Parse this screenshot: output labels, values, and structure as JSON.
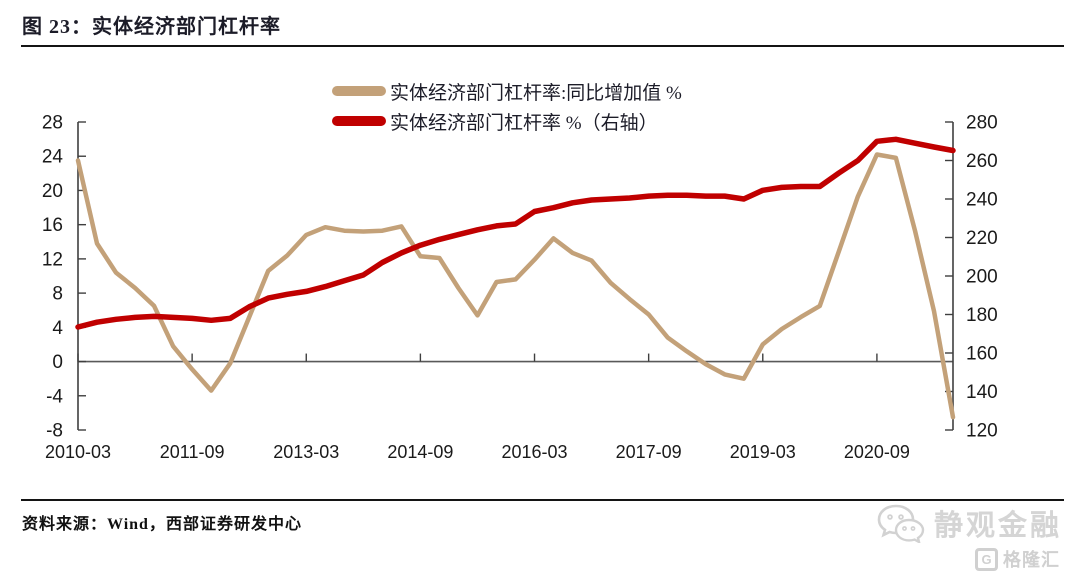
{
  "header": {
    "title": "图 23：实体经济部门杠杆率"
  },
  "legend": [
    {
      "label": "实体经济部门杠杆率:同比增加值 %",
      "color": "#c3a179"
    },
    {
      "label": "实体经济部门杠杆率 %（右轴）",
      "color": "#c00000"
    }
  ],
  "footer": {
    "source": "资料来源：Wind，西部证券研发中心"
  },
  "watermark": {
    "brand": "静观金融",
    "logo_letter": "G",
    "logo_text": "格隆汇"
  },
  "chart_data": {
    "type": "line",
    "x_start": "2010-03",
    "x_frequency": "quarterly",
    "x_tick_labels": [
      "2010-03",
      "2011-09",
      "2013-03",
      "2014-09",
      "2016-03",
      "2017-09",
      "2019-03",
      "2020-09"
    ],
    "x_tick_indices": [
      0,
      6,
      12,
      18,
      24,
      30,
      36,
      42
    ],
    "left_axis": {
      "ticks": [
        28,
        24,
        20,
        16,
        12,
        8,
        4,
        0,
        -4,
        -8
      ],
      "range": [
        -8,
        28
      ]
    },
    "right_axis": {
      "ticks": [
        280,
        260,
        240,
        220,
        200,
        180,
        160,
        140,
        120
      ],
      "range": [
        120,
        280
      ]
    },
    "grid": false,
    "legend_position": "top-center",
    "series": [
      {
        "name": "实体经济部门杠杆率:同比增加值 %",
        "axis": "left",
        "color": "#c3a179",
        "width": 4.5,
        "values": [
          23.5,
          13.8,
          10.4,
          8.6,
          6.5,
          1.8,
          -0.9,
          -3.4,
          -0.2,
          5.2,
          10.6,
          12.4,
          14.8,
          15.7,
          15.3,
          15.2,
          15.3,
          15.8,
          12.3,
          12.1,
          8.6,
          5.4,
          9.3,
          9.6,
          11.9,
          14.4,
          12.7,
          11.8,
          9.2,
          7.3,
          5.5,
          2.8,
          1.2,
          -0.3,
          -1.5,
          -2.0,
          2.0,
          3.8,
          5.2,
          6.5,
          12.9,
          19.3,
          24.2,
          23.8,
          15.3,
          5.9,
          -6.5
        ]
      },
      {
        "name": "实体经济部门杠杆率 %（右轴）",
        "axis": "right",
        "color": "#c00000",
        "width": 5.5,
        "values": [
          173.5,
          176,
          177.5,
          178.5,
          179,
          178.5,
          178,
          177,
          178,
          184,
          188.5,
          190.5,
          192,
          194.5,
          197.5,
          200.5,
          207,
          212,
          216,
          219,
          221.5,
          224,
          226,
          227,
          233.5,
          235.5,
          238,
          239.5,
          240,
          240.5,
          241.5,
          242,
          242,
          241.5,
          241.5,
          240,
          244.5,
          246,
          246.5,
          246.5,
          253.5,
          260,
          270,
          271,
          269,
          267,
          265.2
        ]
      }
    ]
  }
}
